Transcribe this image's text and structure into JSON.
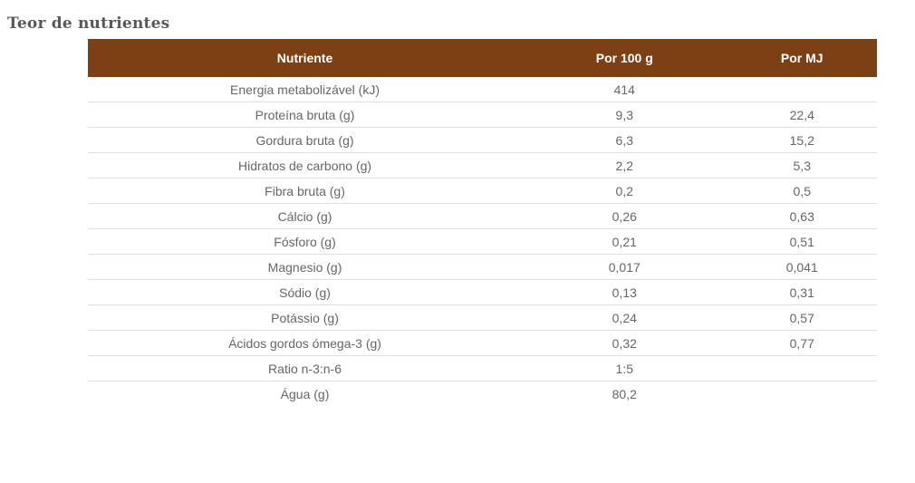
{
  "page": {
    "title": "Teor de nutrientes"
  },
  "colors": {
    "header_background": "#7c4014",
    "header_text": "#ffffff",
    "title_text": "#58585a",
    "cell_text": "#666666",
    "row_border": "#e0e0e0",
    "page_background": "#ffffff"
  },
  "table": {
    "headers": [
      "Nutriente",
      "Por 100 g",
      "Por MJ"
    ],
    "rows": [
      {
        "nutrient": "Energia metabolizável (kJ)",
        "per100g": "414",
        "perMJ": ""
      },
      {
        "nutrient": "Proteína bruta (g)",
        "per100g": "9,3",
        "perMJ": "22,4"
      },
      {
        "nutrient": "Gordura bruta (g)",
        "per100g": "6,3",
        "perMJ": "15,2"
      },
      {
        "nutrient": "Hidratos de carbono (g)",
        "per100g": "2,2",
        "perMJ": "5,3"
      },
      {
        "nutrient": "Fibra bruta (g)",
        "per100g": "0,2",
        "perMJ": "0,5"
      },
      {
        "nutrient": "Cálcio (g)",
        "per100g": "0,26",
        "perMJ": "0,63"
      },
      {
        "nutrient": "Fósforo (g)",
        "per100g": "0,21",
        "perMJ": "0,51"
      },
      {
        "nutrient": "Magnesio (g)",
        "per100g": "0,017",
        "perMJ": "0,041"
      },
      {
        "nutrient": "Sódio (g)",
        "per100g": "0,13",
        "perMJ": "0,31"
      },
      {
        "nutrient": "Potássio (g)",
        "per100g": "0,24",
        "perMJ": "0,57"
      },
      {
        "nutrient": "Ácidos gordos ómega-3 (g)",
        "per100g": "0,32",
        "perMJ": "0,77"
      },
      {
        "nutrient": "Ratio n-3:n-6",
        "per100g": "1:5",
        "perMJ": ""
      },
      {
        "nutrient": "Água (g)",
        "per100g": "80,2",
        "perMJ": ""
      }
    ]
  }
}
